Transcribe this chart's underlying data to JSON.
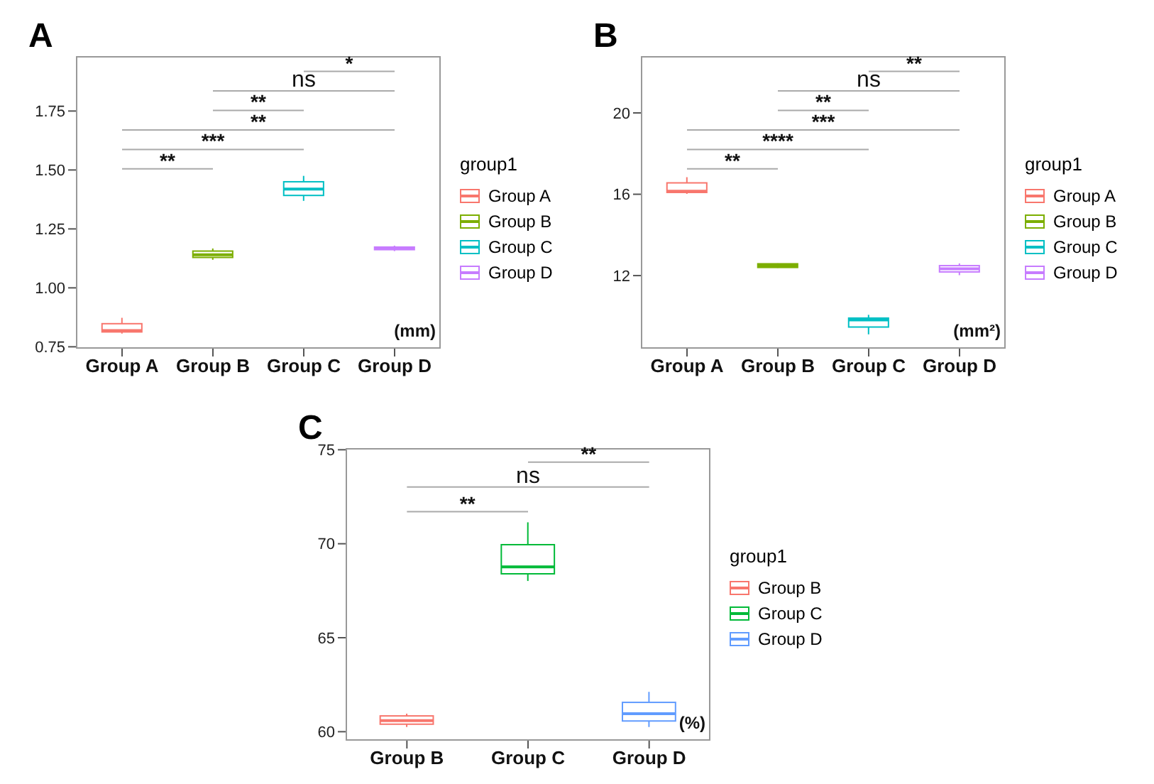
{
  "chart_data": [
    {
      "type": "box",
      "title": "A",
      "categories": [
        "Group A",
        "Group B",
        "Group C",
        "Group D"
      ],
      "series": [
        {
          "name": "Group A",
          "color": "#f8766d",
          "boxes": [
            {
              "low": 0.806,
              "q1": 0.813,
              "median": 0.819,
              "q3": 0.848,
              "high": 0.873
            },
            null,
            null,
            null
          ]
        },
        {
          "name": "Group B",
          "color": "#7cae00",
          "boxes": [
            null,
            {
              "low": 1.119,
              "q1": 1.129,
              "median": 1.14,
              "q3": 1.156,
              "high": 1.167
            },
            null,
            null
          ]
        },
        {
          "name": "Group C",
          "color": "#00bfc4",
          "boxes": [
            null,
            null,
            {
              "low": 1.369,
              "q1": 1.392,
              "median": 1.419,
              "q3": 1.45,
              "high": 1.475
            },
            null
          ]
        },
        {
          "name": "Group D",
          "color": "#c77cff",
          "boxes": [
            null,
            null,
            null,
            {
              "low": 1.156,
              "q1": 1.162,
              "median": 1.169,
              "q3": 1.173,
              "high": 1.179
            }
          ]
        }
      ],
      "ylim": [
        0.745,
        1.98
      ],
      "yticks": [
        0.75,
        {
          "value": 1,
          "label": "1.00"
        },
        1.25,
        {
          "value": 1.5,
          "label": "1.50"
        },
        1.75
      ],
      "legend": "right",
      "legend_title": "group1",
      "grid": false,
      "annotations": [
        "**",
        "***",
        "**",
        "**",
        "ns",
        "*",
        "(mm)"
      ]
    },
    {
      "type": "box",
      "title": "B",
      "categories": [
        "Group A",
        "Group B",
        "Group C",
        "Group D"
      ],
      "series": [
        {
          "name": "Group A",
          "color": "#f8766d",
          "boxes": [
            {
              "low": 16.02,
              "q1": 16.09,
              "median": 16.15,
              "q3": 16.56,
              "high": 16.84
            },
            null,
            null,
            null
          ]
        },
        {
          "name": "Group B",
          "color": "#7cae00",
          "boxes": [
            null,
            {
              "low": 12.38,
              "q1": 12.4,
              "median": 12.49,
              "q3": 12.58,
              "high": 12.6
            },
            null,
            null
          ]
        },
        {
          "name": "Group C",
          "color": "#00bfc4",
          "boxes": [
            null,
            null,
            {
              "low": 9.11,
              "q1": 9.47,
              "median": 9.82,
              "q3": 9.91,
              "high": 10.07
            },
            null
          ]
        },
        {
          "name": "Group D",
          "color": "#c77cff",
          "boxes": [
            null,
            null,
            null,
            {
              "low": 12.02,
              "q1": 12.18,
              "median": 12.33,
              "q3": 12.49,
              "high": 12.6
            }
          ]
        }
      ],
      "ylim": [
        8.44,
        22.76
      ],
      "yticks": [
        12,
        16,
        20
      ],
      "legend": "right",
      "legend_title": "group1",
      "grid": false,
      "annotations": [
        "**",
        "****",
        "***",
        "**",
        "ns",
        "**",
        "(mm²)"
      ]
    },
    {
      "type": "box",
      "title": "C",
      "categories": [
        "Group B",
        "Group C",
        "Group D"
      ],
      "series": [
        {
          "name": "Group B",
          "color": "#f8766d",
          "boxes": [
            {
              "low": 60.25,
              "q1": 60.4,
              "median": 60.59,
              "q3": 60.84,
              "high": 60.96
            },
            null,
            null
          ]
        },
        {
          "name": "Group C",
          "color": "#00ba38",
          "boxes": [
            null,
            {
              "low": 68.02,
              "q1": 68.4,
              "median": 68.77,
              "q3": 69.95,
              "high": 71.14
            },
            null
          ]
        },
        {
          "name": "Group D",
          "color": "#619cff",
          "boxes": [
            null,
            null,
            {
              "low": 60.25,
              "q1": 60.57,
              "median": 60.96,
              "q3": 61.56,
              "high": 62.12
            }
          ]
        }
      ],
      "ylim": [
        59.56,
        75.05
      ],
      "yticks": [
        60,
        65,
        70,
        75
      ],
      "legend": "right",
      "legend_title": "group1",
      "grid": false,
      "annotations": [
        "**",
        "ns",
        "**",
        "(%)"
      ]
    }
  ]
}
